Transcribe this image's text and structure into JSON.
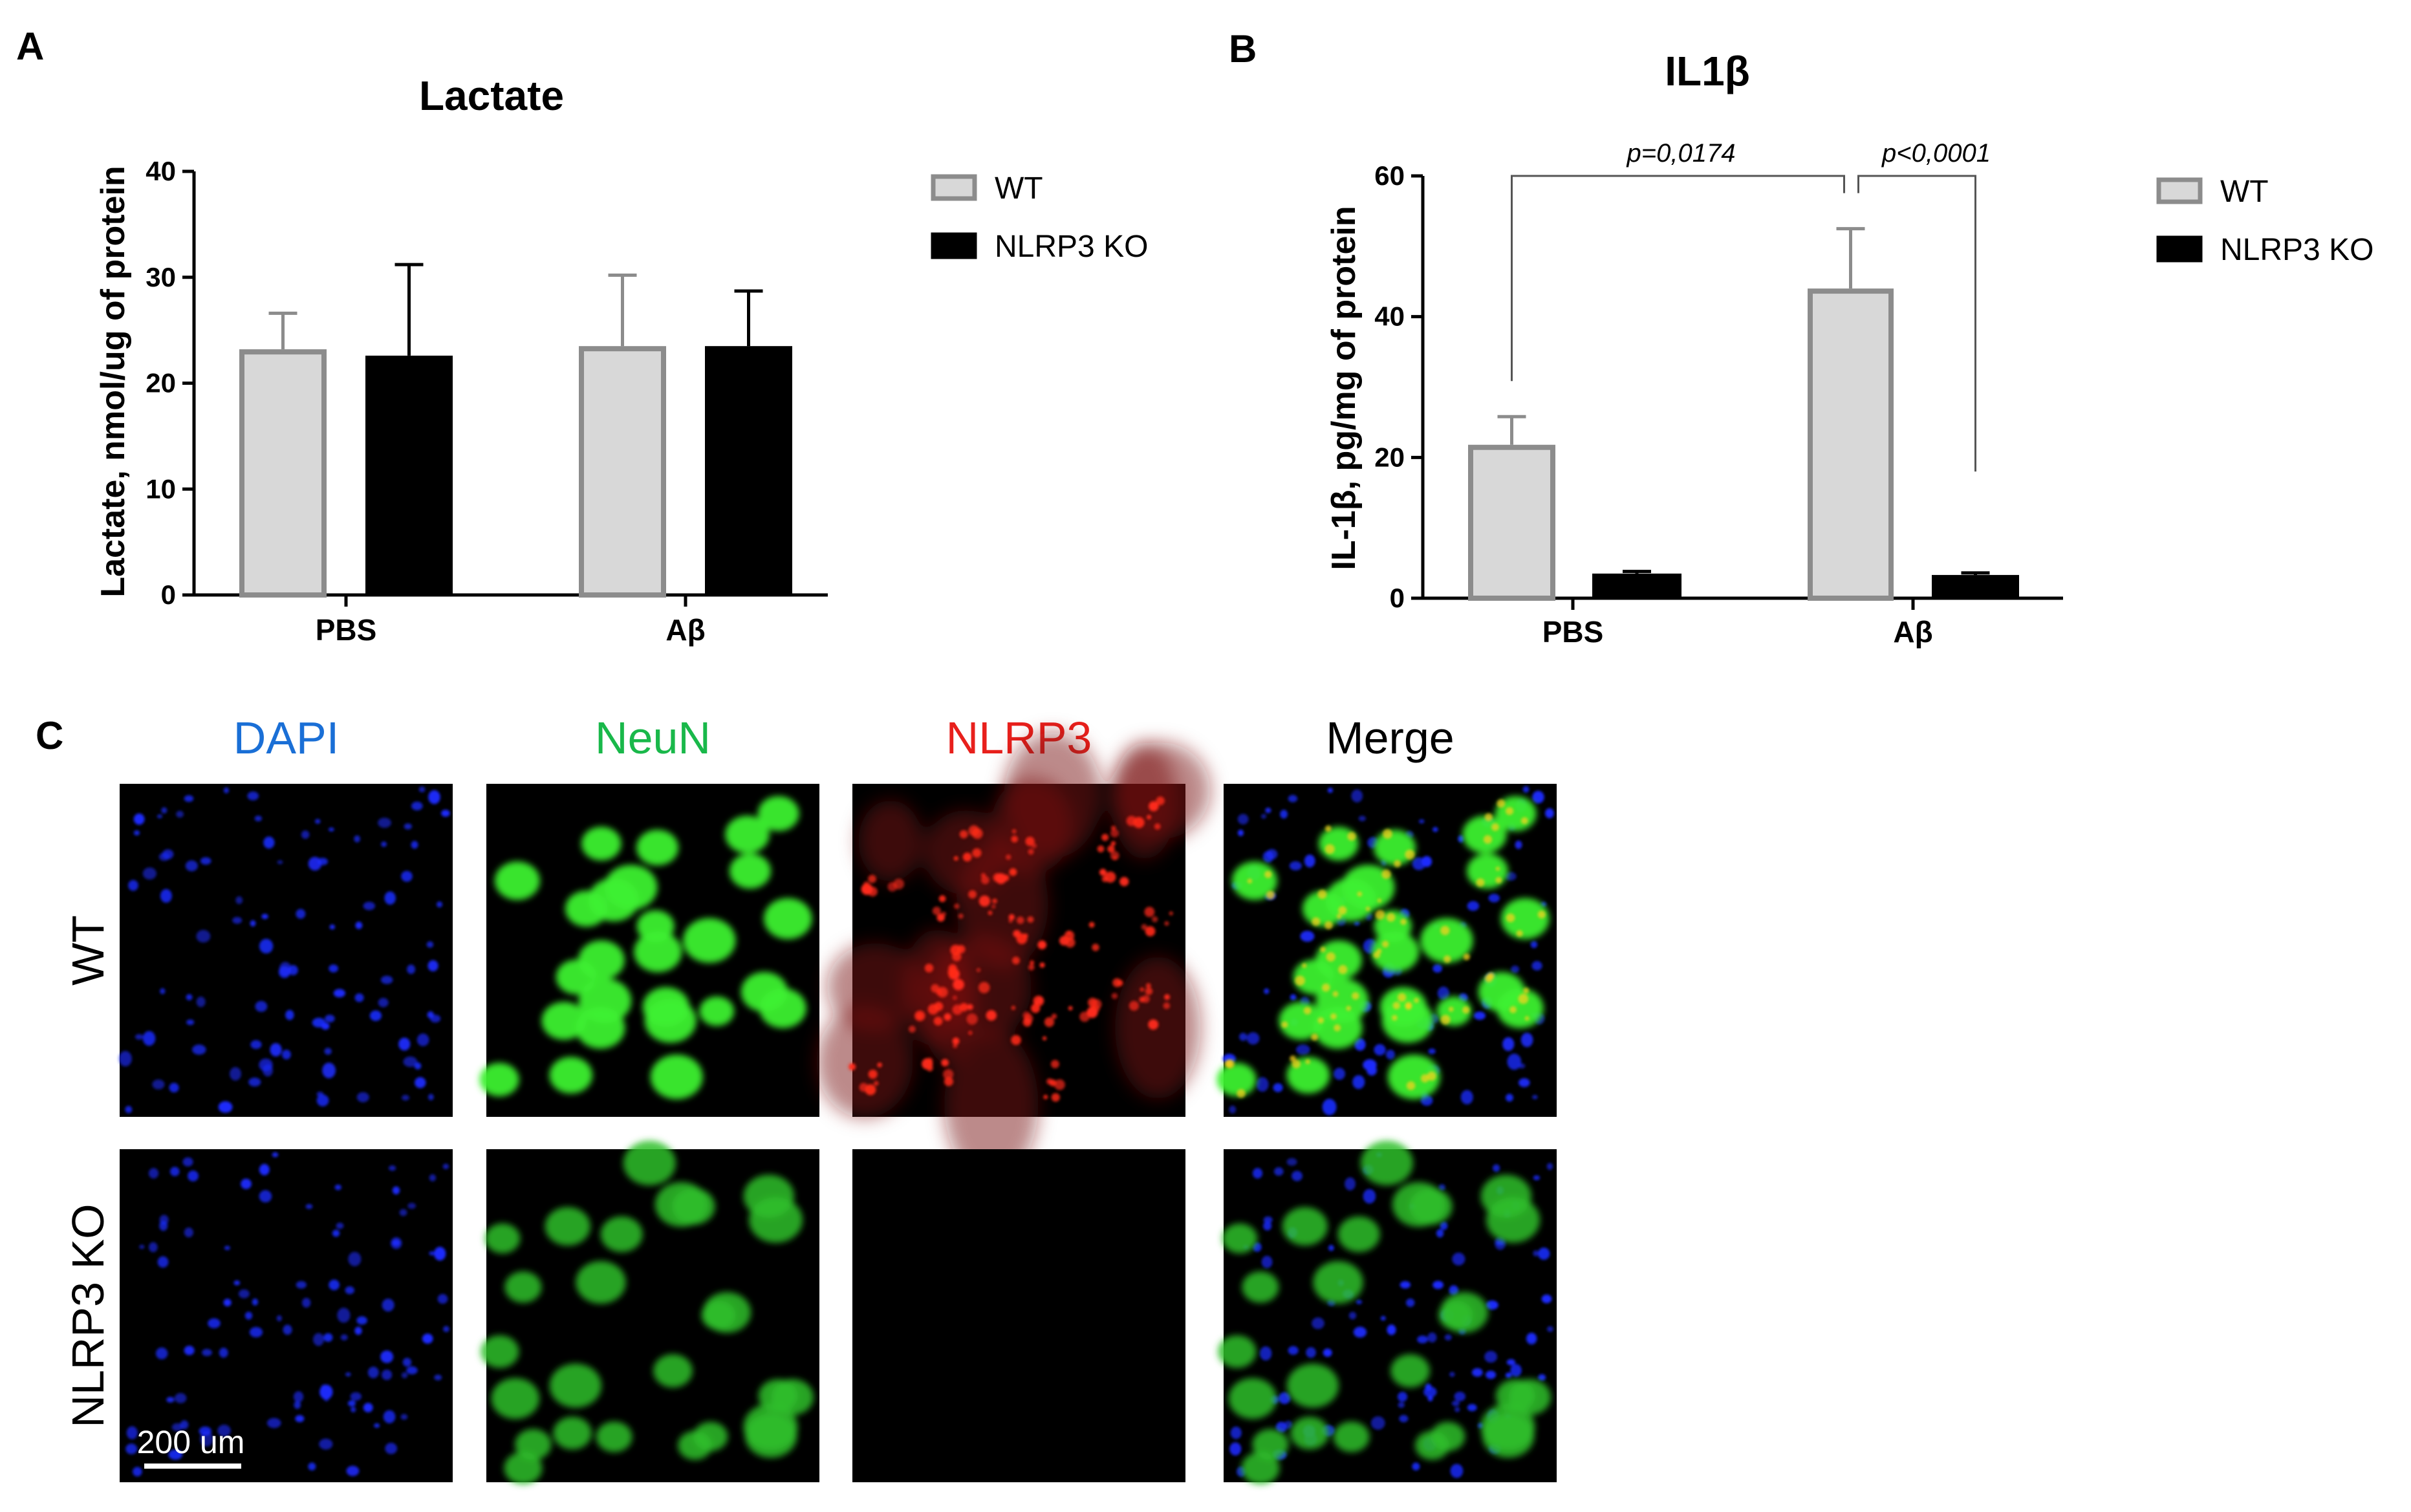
{
  "chart_data": [
    {
      "panel": "A",
      "type": "bar",
      "title": "Lactate",
      "ylabel": "Lactate, nmol/ug of protein",
      "xlabel": "",
      "ylim": [
        0,
        40
      ],
      "yticks": [
        0,
        10,
        20,
        30,
        40
      ],
      "categories": [
        "PBS",
        "Aβ"
      ],
      "series": [
        {
          "name": "WT",
          "values": [
            23.2,
            23.5
          ],
          "errors": [
            3.4,
            6.7
          ],
          "fill": "#d8d8d8",
          "stroke": "#8c8c8c"
        },
        {
          "name": "NLRP3 KO",
          "values": [
            22.6,
            23.5
          ],
          "errors": [
            8.6,
            5.2
          ],
          "fill": "#000000",
          "stroke": "#000000"
        }
      ],
      "legend": "top-right",
      "grid": false
    },
    {
      "panel": "B",
      "type": "bar",
      "title": "IL1β",
      "ylabel": "IL-1β, pg/mg of protein",
      "xlabel": "",
      "ylim": [
        0,
        60
      ],
      "yticks": [
        0,
        20,
        40,
        60
      ],
      "categories": [
        "PBS",
        "Aβ"
      ],
      "series": [
        {
          "name": "WT",
          "values": [
            21.8,
            44.0
          ],
          "errors": [
            4.0,
            8.5
          ],
          "fill": "#d8d8d8",
          "stroke": "#8c8c8c"
        },
        {
          "name": "NLRP3 KO",
          "values": [
            3.5,
            3.3
          ],
          "errors": [
            0.3,
            0.3
          ],
          "fill": "#000000",
          "stroke": "#000000"
        }
      ],
      "annotations": [
        {
          "text": "p=0,0174",
          "from": "PBS WT",
          "to": "Aβ WT"
        },
        {
          "text": "p<0,0001",
          "from": "Aβ WT",
          "to": "Aβ NLRP3 KO"
        }
      ],
      "legend": "top-right",
      "grid": false
    }
  ],
  "panel_c": {
    "letter": "C",
    "columns": [
      {
        "label": "DAPI",
        "color": "#1a6fd6"
      },
      {
        "label": "NeuN",
        "color": "#19b84a"
      },
      {
        "label": "NLRP3",
        "color": "#e8201c"
      },
      {
        "label": "Merge",
        "color": "#000000"
      }
    ],
    "rows": [
      "WT",
      "NLRP3 KO"
    ],
    "scale_bar": "200 um"
  }
}
